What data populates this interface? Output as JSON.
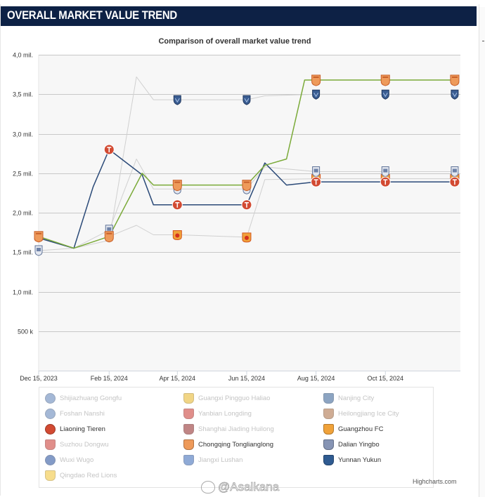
{
  "header": {
    "title": "OVERALL MARKET VALUE TREND"
  },
  "chart_data": {
    "type": "line",
    "title": "Comparison of overall market value trend",
    "x_tick_labels": [
      "Dec 15, 2023",
      "Feb 15, 2024",
      "Apr 15, 2024",
      "Jun 15, 2024",
      "Aug 15, 2024",
      "Oct 15, 2024"
    ],
    "y_tick_labels": [
      "500 k",
      "1,0 mil.",
      "1,5 mil.",
      "2,0 mil.",
      "2,5 mil.",
      "3,0 mil.",
      "3,5 mil.",
      "4,0 mil."
    ],
    "y_tick_values": [
      500000,
      1000000,
      1500000,
      2000000,
      2500000,
      3000000,
      3500000,
      4000000
    ],
    "ylim": [
      0,
      4000000
    ],
    "xlim": [
      "2023-12-15",
      "2024-12-20"
    ],
    "grid": true,
    "legend_placement": "bottom",
    "colors": {
      "liaoning": "#2b4a78",
      "chongqing": "#7aaa38",
      "hidden_line": "#d0d0d0",
      "marker_orange": "#ee9a5a",
      "marker_red": "#d24a32",
      "marker_blue": "#3a5d92",
      "marker_white": "#e3e7ef"
    },
    "series": [
      {
        "name": "Liaoning Tieren",
        "visible": true,
        "color": "#2b4a78",
        "marker": "red-circle-T",
        "points": [
          [
            "2023-12-15",
            1680000
          ],
          [
            "2024-01-15",
            1550000
          ],
          [
            "2024-02-01",
            2330000
          ],
          [
            "2024-02-15",
            2800000
          ],
          [
            "2024-03-15",
            2480000
          ],
          [
            "2024-03-25",
            2100000
          ],
          [
            "2024-04-15",
            2100000
          ],
          [
            "2024-06-15",
            2100000
          ],
          [
            "2024-07-01",
            2630000
          ],
          [
            "2024-07-20",
            2350000
          ],
          [
            "2024-08-15",
            2390000
          ],
          [
            "2024-10-15",
            2390000
          ],
          [
            "2024-12-15",
            2390000
          ]
        ],
        "marker_dates": [
          "2024-02-15",
          "2024-04-15",
          "2024-06-15",
          "2024-08-15",
          "2024-10-15",
          "2024-12-15"
        ]
      },
      {
        "name": "Chongqing Tonglianglong",
        "visible": true,
        "color": "#7aaa38",
        "marker": "orange-shield",
        "points": [
          [
            "2023-12-15",
            1700000
          ],
          [
            "2024-01-15",
            1550000
          ],
          [
            "2024-02-15",
            1700000
          ],
          [
            "2024-03-15",
            2500000
          ],
          [
            "2024-03-25",
            2350000
          ],
          [
            "2024-04-15",
            2350000
          ],
          [
            "2024-06-15",
            2350000
          ],
          [
            "2024-07-01",
            2600000
          ],
          [
            "2024-07-20",
            2680000
          ],
          [
            "2024-08-05",
            3680000
          ],
          [
            "2024-08-15",
            3680000
          ],
          [
            "2024-10-15",
            3680000
          ],
          [
            "2024-12-15",
            3680000
          ]
        ],
        "marker_dates": [
          "2023-12-15",
          "2024-02-15",
          "2024-04-15",
          "2024-06-15",
          "2024-08-15",
          "2024-10-15",
          "2024-12-15"
        ]
      },
      {
        "name": "Yunnan Yukun",
        "visible": false,
        "color": "#d0d0d0",
        "marker": "blue-shield",
        "points": [
          [
            "2023-12-15",
            1690000
          ],
          [
            "2024-01-15",
            1550000
          ],
          [
            "2024-02-15",
            1650000
          ],
          [
            "2024-03-10",
            3720000
          ],
          [
            "2024-03-25",
            3430000
          ],
          [
            "2024-04-15",
            3430000
          ],
          [
            "2024-06-15",
            3430000
          ],
          [
            "2024-07-01",
            3480000
          ],
          [
            "2024-08-15",
            3500000
          ],
          [
            "2024-10-15",
            3500000
          ],
          [
            "2024-12-15",
            3500000
          ]
        ],
        "marker_dates": [
          "2024-04-15",
          "2024-06-15",
          "2024-08-15",
          "2024-10-15",
          "2024-12-15"
        ]
      },
      {
        "name": "Dalian Yingbo",
        "visible": false,
        "color": "#d0d0d0",
        "marker": "white-shield",
        "points": [
          [
            "2023-12-15",
            1520000
          ],
          [
            "2024-01-15",
            1550000
          ],
          [
            "2024-02-15",
            1780000
          ],
          [
            "2024-03-10",
            2680000
          ],
          [
            "2024-03-25",
            2300000
          ],
          [
            "2024-04-15",
            2300000
          ],
          [
            "2024-06-15",
            2300000
          ],
          [
            "2024-07-01",
            2580000
          ],
          [
            "2024-08-15",
            2520000
          ],
          [
            "2024-10-15",
            2520000
          ],
          [
            "2024-12-15",
            2520000
          ]
        ],
        "marker_dates": [
          "2023-12-15",
          "2024-02-15",
          "2024-04-15",
          "2024-06-15",
          "2024-08-15",
          "2024-10-15",
          "2024-12-15"
        ]
      },
      {
        "name": "Guangzhou FC",
        "visible": false,
        "color": "#d0d0d0",
        "marker": "orange-badge",
        "points": [
          [
            "2023-12-15",
            1700000
          ],
          [
            "2024-01-15",
            1550000
          ],
          [
            "2024-02-15",
            1700000
          ],
          [
            "2024-03-10",
            1840000
          ],
          [
            "2024-03-25",
            1720000
          ],
          [
            "2024-04-15",
            1720000
          ],
          [
            "2024-06-15",
            1690000
          ],
          [
            "2024-07-01",
            2420000
          ],
          [
            "2024-08-15",
            2430000
          ],
          [
            "2024-10-15",
            2430000
          ],
          [
            "2024-12-15",
            2430000
          ]
        ],
        "marker_dates": [
          "2023-12-15",
          "2024-04-15",
          "2024-06-15",
          "2024-08-15",
          "2024-10-15",
          "2024-12-15"
        ]
      },
      {
        "name": "Shijiazhuang Gongfu",
        "visible": false
      },
      {
        "name": "Guangxi Pingguo Haliao",
        "visible": false
      },
      {
        "name": "Nanjing City",
        "visible": false
      },
      {
        "name": "Foshan Nanshi",
        "visible": false
      },
      {
        "name": "Yanbian Longding",
        "visible": false
      },
      {
        "name": "Heilongjiang Ice City",
        "visible": false
      },
      {
        "name": "Shanghai Jiading Huilong",
        "visible": false
      },
      {
        "name": "Suzhou Dongwu",
        "visible": false
      },
      {
        "name": "Wuxi Wugo",
        "visible": false
      },
      {
        "name": "Jiangxi Lushan",
        "visible": false
      },
      {
        "name": "Qingdao Red Lions",
        "visible": false
      }
    ]
  },
  "legend": {
    "items": [
      {
        "label": "Shijiazhuang Gongfu",
        "state": "hidden",
        "icon": "round-crest-icon"
      },
      {
        "label": "Guangxi Pingguo Haliao",
        "state": "hidden",
        "icon": "yellow-crest-icon"
      },
      {
        "label": "Nanjing City",
        "state": "hidden",
        "icon": "blue-shield-icon"
      },
      {
        "label": "Foshan Nanshi",
        "state": "hidden",
        "icon": "round-crest-icon"
      },
      {
        "label": "Yanbian Longding",
        "state": "hidden",
        "icon": "red-crest-icon"
      },
      {
        "label": "Heilongjiang Ice City",
        "state": "hidden",
        "icon": "brown-crest-icon"
      },
      {
        "label": "Liaoning Tieren",
        "state": "shown",
        "icon": "red-circle-crest-icon"
      },
      {
        "label": "Shanghai Jiading Huilong",
        "state": "hidden",
        "icon": "dark-red-crest-icon"
      },
      {
        "label": "Guangzhou FC",
        "state": "shown",
        "icon": "orange-crest-icon"
      },
      {
        "label": "Suzhou Dongwu",
        "state": "hidden",
        "icon": "red-crest-icon"
      },
      {
        "label": "Chongqing Tonglianglong",
        "state": "shown",
        "icon": "orange-shield-icon"
      },
      {
        "label": "Dalian Yingbo",
        "state": "shown",
        "icon": "white-shield-icon"
      },
      {
        "label": "Wuxi Wugo",
        "state": "hidden",
        "icon": "blue-round-crest-icon"
      },
      {
        "label": "Jiangxi Lushan",
        "state": "hidden",
        "icon": "blue-white-shield-icon"
      },
      {
        "label": "Yunnan Yukun",
        "state": "shown",
        "icon": "blue-shield-icon"
      },
      {
        "label": "Qingdao Red Lions",
        "state": "hidden",
        "icon": "yellow-shield-icon"
      }
    ]
  },
  "credits": "Highcharts.com",
  "watermark": "@Asaikana"
}
